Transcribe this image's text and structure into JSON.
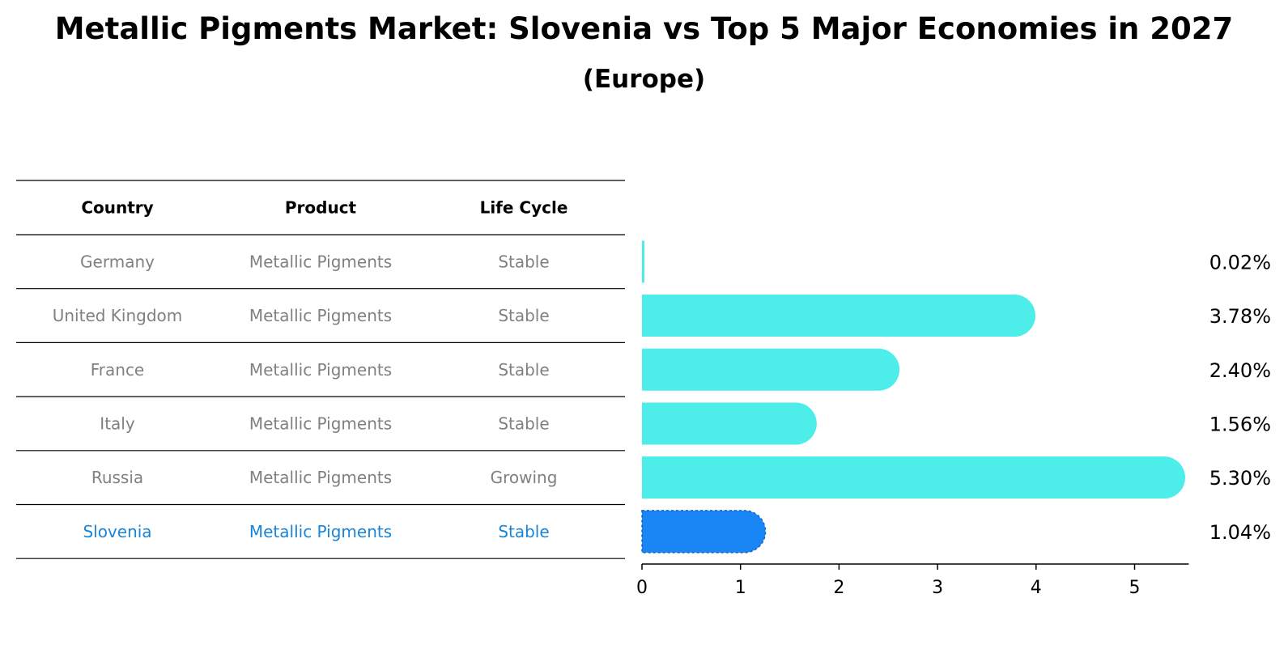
{
  "title": "Metallic Pigments Market: Slovenia vs Top 5 Major Economies in 2027",
  "subtitle": "(Europe)",
  "colors": {
    "bar": "#4DEEEA",
    "highlight": "#1A85F5",
    "muted_text": "#808080",
    "highlight_text": "#1A85D6"
  },
  "table": {
    "headers": [
      "Country",
      "Product",
      "Life Cycle"
    ],
    "rows": [
      {
        "country": "Germany",
        "product": "Metallic Pigments",
        "life_cycle": "Stable",
        "highlight": false
      },
      {
        "country": "United Kingdom",
        "product": "Metallic Pigments",
        "life_cycle": "Stable",
        "highlight": false
      },
      {
        "country": "France",
        "product": "Metallic Pigments",
        "life_cycle": "Stable",
        "highlight": false
      },
      {
        "country": "Italy",
        "product": "Metallic Pigments",
        "life_cycle": "Stable",
        "highlight": false
      },
      {
        "country": "Russia",
        "product": "Metallic Pigments",
        "life_cycle": "Growing",
        "highlight": false
      },
      {
        "country": "Slovenia",
        "product": "Metallic Pigments",
        "life_cycle": "Stable",
        "highlight": true
      }
    ]
  },
  "chart_data": {
    "type": "bar",
    "orientation": "horizontal",
    "categories": [
      "Germany",
      "United Kingdom",
      "France",
      "Italy",
      "Russia",
      "Slovenia"
    ],
    "values": [
      0.02,
      3.78,
      2.4,
      1.56,
      5.3,
      1.04
    ],
    "value_labels": [
      "0.02%",
      "3.78%",
      "2.40%",
      "1.56%",
      "5.30%",
      "1.04%"
    ],
    "highlight_category": "Slovenia",
    "xticks": [
      0,
      1,
      2,
      3,
      4,
      5
    ],
    "xlim": [
      0,
      5.55
    ],
    "grid": false
  }
}
